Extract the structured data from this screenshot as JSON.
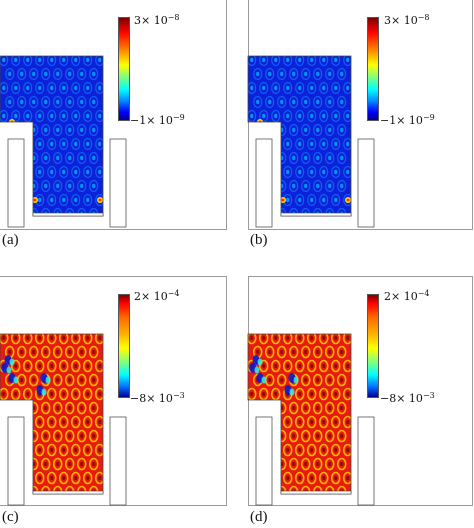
{
  "panels": [
    {
      "label": "(a)",
      "colorbar": {
        "max": {
          "mant": "3",
          "exp": "−8"
        },
        "min": {
          "mant": "−1",
          "exp": "−9"
        }
      },
      "field": "low"
    },
    {
      "label": "(b)",
      "colorbar": {
        "max": {
          "mant": "3",
          "exp": "−8"
        },
        "min": {
          "mant": "−1",
          "exp": "−9"
        }
      },
      "field": "low"
    },
    {
      "label": "(c)",
      "colorbar": {
        "max": {
          "mant": "2",
          "exp": "−4"
        },
        "min": {
          "mant": "−8",
          "exp": "−3"
        }
      },
      "field": "high"
    },
    {
      "label": "(d)",
      "colorbar": {
        "max": {
          "mant": "2",
          "exp": "−4"
        },
        "min": {
          "mant": "−8",
          "exp": "−3"
        }
      },
      "field": "high"
    }
  ],
  "colors": {
    "low_background": "#0a22d8",
    "high_background": "#e81b10",
    "frame": "#9a9a9a"
  }
}
